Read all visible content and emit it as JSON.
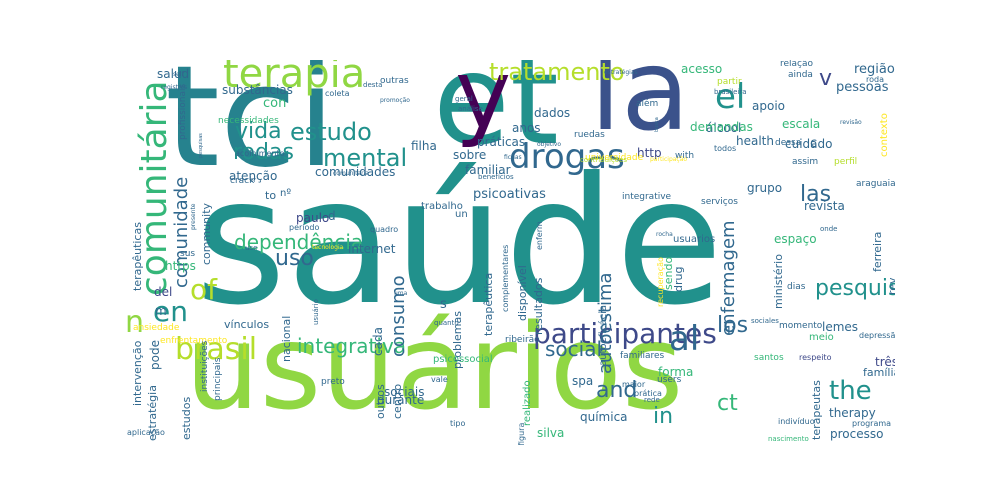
{
  "palette": {
    "dark_purple": "#440154",
    "indigo": "#3b528b",
    "slate_blue": "#3e4989",
    "blue": "#31688e",
    "teal": "#26828e",
    "sea": "#21918c",
    "green": "#35b779",
    "lime": "#6ece58",
    "light_green": "#90d743",
    "yellow_green": "#b5de2b",
    "yellow": "#fde725"
  },
  "words": [
    {
      "text": "saúde",
      "color": "sea"
    },
    {
      "text": "usuários",
      "color": "light_green"
    },
    {
      "text": "tci",
      "color": "teal"
    },
    {
      "text": "et",
      "color": "sea"
    },
    {
      "text": "la",
      "color": "indigo"
    },
    {
      "text": "y",
      "color": "dark_purple"
    },
    {
      "text": "comunitária",
      "color": "green"
    },
    {
      "text": "terapia",
      "color": "light_green"
    },
    {
      "text": "drogas",
      "color": "blue"
    },
    {
      "text": "el",
      "color": "sea"
    },
    {
      "text": "tratamento",
      "color": "yellow_green"
    },
    {
      "text": "participantes",
      "color": "slate_blue"
    },
    {
      "text": "brasil",
      "color": "yellow_green"
    },
    {
      "text": "al",
      "color": "blue"
    },
    {
      "text": "of",
      "color": "yellow_green"
    },
    {
      "text": "en",
      "color": "sea"
    },
    {
      "text": "n",
      "color": "light_green"
    },
    {
      "text": "mental",
      "color": "sea"
    },
    {
      "text": "estudo",
      "color": "sea"
    },
    {
      "text": "rodas",
      "color": "sea"
    },
    {
      "text": "vida",
      "color": "sea"
    },
    {
      "text": "dependência",
      "color": "green"
    },
    {
      "text": "uso",
      "color": "blue"
    },
    {
      "text": "integrativa",
      "color": "green"
    },
    {
      "text": "social",
      "color": "blue"
    },
    {
      "text": "the",
      "color": "sea"
    },
    {
      "text": "and",
      "color": "blue"
    },
    {
      "text": "ct",
      "color": "green"
    },
    {
      "text": "in",
      "color": "sea"
    },
    {
      "text": "los",
      "color": "blue"
    },
    {
      "text": "pesquisa",
      "color": "sea"
    },
    {
      "text": "enfermagem",
      "color": "blue"
    },
    {
      "text": "autoestima",
      "color": "blue"
    },
    {
      "text": "consumo",
      "color": "blue"
    },
    {
      "text": "comunidade",
      "color": "blue"
    },
    {
      "text": "las",
      "color": "blue"
    },
    {
      "text": "v",
      "color": "slate_blue"
    },
    {
      "text": "região",
      "color": "blue"
    },
    {
      "text": "pessoas",
      "color": "blue"
    },
    {
      "text": "salud",
      "color": "blue"
    },
    {
      "text": "substâncias",
      "color": "blue"
    },
    {
      "text": "con",
      "color": "green"
    },
    {
      "text": "atenção",
      "color": "blue"
    },
    {
      "text": "comunidades",
      "color": "blue"
    },
    {
      "text": "filha",
      "color": "blue"
    },
    {
      "text": "práticas",
      "color": "blue"
    },
    {
      "text": "http",
      "color": "slate_blue"
    },
    {
      "text": "familiar",
      "color": "blue"
    },
    {
      "text": "psicoativas",
      "color": "blue"
    },
    {
      "text": "dados",
      "color": "blue"
    },
    {
      "text": "anos",
      "color": "blue"
    },
    {
      "text": "sobre",
      "color": "blue"
    },
    {
      "text": "acesso",
      "color": "green"
    },
    {
      "text": "escala",
      "color": "green"
    },
    {
      "text": "apoio",
      "color": "blue"
    },
    {
      "text": "cuidado",
      "color": "blue"
    },
    {
      "text": "álcool",
      "color": "blue"
    },
    {
      "text": "health",
      "color": "blue"
    },
    {
      "text": "grupo",
      "color": "blue"
    },
    {
      "text": "revista",
      "color": "blue"
    },
    {
      "text": "espaço",
      "color": "green"
    },
    {
      "text": "ministério",
      "color": "blue"
    },
    {
      "text": "lemes",
      "color": "blue"
    },
    {
      "text": "ferreira",
      "color": "blue"
    },
    {
      "text": "demandas",
      "color": "green"
    },
    {
      "text": "contexto",
      "color": "yellow"
    },
    {
      "text": "nacional",
      "color": "blue"
    },
    {
      "text": "paulo",
      "color": "slate_blue"
    },
    {
      "text": "internet",
      "color": "blue"
    },
    {
      "text": "durante",
      "color": "blue"
    },
    {
      "text": "cada",
      "color": "blue"
    },
    {
      "text": "del",
      "color": "slate_blue"
    },
    {
      "text": "pode",
      "color": "blue"
    },
    {
      "text": "sociais",
      "color": "blue"
    },
    {
      "text": "centro",
      "color": "blue"
    },
    {
      "text": "outros",
      "color": "blue"
    },
    {
      "text": "forma",
      "color": "green"
    },
    {
      "text": "química",
      "color": "blue"
    },
    {
      "text": "silva",
      "color": "green"
    },
    {
      "text": "spa",
      "color": "blue"
    },
    {
      "text": "therapy",
      "color": "blue"
    },
    {
      "text": "processo",
      "color": "blue"
    },
    {
      "text": "família",
      "color": "blue"
    },
    {
      "text": "três",
      "color": "slate_blue"
    },
    {
      "text": "terapêuticas",
      "color": "blue"
    },
    {
      "text": "intervenção",
      "color": "blue"
    },
    {
      "text": "estratégia",
      "color": "blue"
    },
    {
      "text": "estudos",
      "color": "blue"
    },
    {
      "text": "https",
      "color": "green"
    },
    {
      "text": "vínculos",
      "color": "blue"
    },
    {
      "text": "terapêutica",
      "color": "blue"
    },
    {
      "text": "disponível",
      "color": "blue"
    },
    {
      "text": "resultados",
      "color": "blue"
    },
    {
      "text": "problemas",
      "color": "blue"
    },
    {
      "text": "drug",
      "color": "blue"
    },
    {
      "text": "sendo",
      "color": "green"
    },
    {
      "text": "usuarios",
      "color": "blue"
    },
    {
      "text": "integrative",
      "color": "blue"
    },
    {
      "text": "serviços",
      "color": "blue"
    },
    {
      "text": "terapeutas",
      "color": "blue"
    },
    {
      "text": "autoeficácia",
      "color": "blue"
    },
    {
      "text": "realizado",
      "color": "green"
    },
    {
      "text": "necessidades",
      "color": "green"
    },
    {
      "text": "acolhimento",
      "color": "blue"
    },
    {
      "text": "profissionais",
      "color": "blue"
    },
    {
      "text": "crack",
      "color": "blue"
    },
    {
      "text": "coleta",
      "color": "blue"
    },
    {
      "text": "outras",
      "color": "blue"
    },
    {
      "text": "nº",
      "color": "blue"
    },
    {
      "text": "to",
      "color": "blue"
    },
    {
      "text": "community",
      "color": "blue"
    },
    {
      "text": "d",
      "color": "blue"
    },
    {
      "text": "c",
      "color": "blue"
    },
    {
      "text": "s",
      "color": "blue"
    },
    {
      "text": "m",
      "color": "blue"
    },
    {
      "text": "un",
      "color": "blue"
    },
    {
      "text": "dias",
      "color": "blue"
    },
    {
      "text": "momento",
      "color": "blue"
    },
    {
      "text": "meio",
      "color": "green"
    },
    {
      "text": "rev",
      "color": "blue"
    },
    {
      "text": "ruedas",
      "color": "blue"
    },
    {
      "text": "além",
      "color": "blue"
    },
    {
      "text": "todos",
      "color": "blue"
    },
    {
      "text": "with",
      "color": "blue"
    },
    {
      "text": "perfil",
      "color": "yellow_green"
    },
    {
      "text": "assim",
      "color": "blue"
    },
    {
      "text": "araguaia",
      "color": "blue"
    },
    {
      "text": "universidade",
      "color": "yellow"
    },
    {
      "text": "ainda",
      "color": "blue"
    },
    {
      "text": "relação",
      "color": "blue"
    },
    {
      "text": "partir",
      "color": "yellow_green"
    },
    {
      "text": "dessa",
      "color": "blue"
    },
    {
      "text": "ribeirão",
      "color": "blue"
    },
    {
      "text": "santos",
      "color": "green"
    },
    {
      "text": "respeito",
      "color": "slate_blue"
    },
    {
      "text": "users",
      "color": "blue"
    },
    {
      "text": "maior",
      "color": "blue"
    },
    {
      "text": "familiares",
      "color": "blue"
    },
    {
      "text": "psicossocial",
      "color": "green"
    },
    {
      "text": "trabalho",
      "color": "blue"
    },
    {
      "text": "ansiedade",
      "color": "yellow"
    },
    {
      "text": "enfrentamento",
      "color": "yellow"
    },
    {
      "text": "preto",
      "color": "blue"
    },
    {
      "text": "instituições",
      "color": "blue"
    },
    {
      "text": "principais",
      "color": "blue"
    },
    {
      "text": "sus",
      "color": "blue"
    },
    {
      "text": "quadro",
      "color": "blue"
    },
    {
      "text": "período",
      "color": "blue"
    },
    {
      "text": "figura",
      "color": "blue"
    },
    {
      "text": "vale",
      "color": "blue"
    },
    {
      "text": "prática",
      "color": "blue"
    },
    {
      "text": "rede",
      "color": "blue"
    },
    {
      "text": "tipo",
      "color": "blue"
    },
    {
      "text": "programa",
      "color": "blue"
    },
    {
      "text": "nascimento",
      "color": "green"
    },
    {
      "text": "indivíduo",
      "color": "blue"
    },
    {
      "text": "aplicação",
      "color": "blue"
    },
    {
      "text": "depressão",
      "color": "blue"
    },
    {
      "text": "sociales",
      "color": "blue"
    },
    {
      "text": "onde",
      "color": "blue"
    },
    {
      "text": "roda",
      "color": "blue"
    },
    {
      "text": "brasileira",
      "color": "blue"
    },
    {
      "text": "geral",
      "color": "blue"
    },
    {
      "text": "análise",
      "color": "blue"
    },
    {
      "text": "promoção",
      "color": "blue"
    },
    {
      "text": "desta",
      "color": "blue"
    },
    {
      "text": "objetivo",
      "color": "blue"
    },
    {
      "text": "fichas",
      "color": "blue"
    },
    {
      "text": "benefícios",
      "color": "blue"
    },
    {
      "text": "estratégias",
      "color": "blue"
    },
    {
      "text": "contribuições",
      "color": "yellow_green"
    },
    {
      "text": "participação",
      "color": "yellow"
    },
    {
      "text": "complementares",
      "color": "blue"
    },
    {
      "text": "recuperação",
      "color": "yellow"
    },
    {
      "text": "enferm",
      "color": "blue"
    },
    {
      "text": "rocha",
      "color": "blue"
    },
    {
      "text": "quanto",
      "color": "blue"
    },
    {
      "text": "uma",
      "color": "blue"
    },
    {
      "text": "usuário",
      "color": "blue"
    },
    {
      "text": "tecnologia",
      "color": "yellow"
    },
    {
      "text": "use",
      "color": "blue"
    },
    {
      "text": "revisão",
      "color": "blue"
    },
    {
      "text": "busca",
      "color": "blue"
    },
    {
      "text": "or",
      "color": "blue"
    },
    {
      "text": "comunitaria",
      "color": "blue"
    },
    {
      "text": "presente",
      "color": "blue"
    },
    {
      "text": "pesquisas",
      "color": "blue"
    },
    {
      "text": "registros",
      "color": "blue"
    },
    {
      "text": "self",
      "color": "blue"
    },
    {
      "text": "estudio",
      "color": "green"
    },
    {
      "text": "neste",
      "color": "blue"
    },
    {
      "text": "vez",
      "color": "yellow_green"
    },
    {
      "text": "j",
      "color": "blue"
    },
    {
      "text": "sus",
      "color": "blue"
    }
  ]
}
